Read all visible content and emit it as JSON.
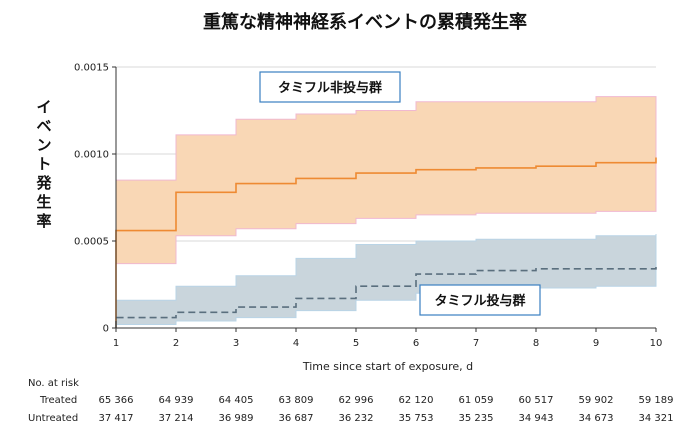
{
  "chart_data": {
    "type": "line",
    "title": "重篤な精神神経系イベントの累積発生率",
    "xlabel": "Time since start of exposure, d",
    "ylabel": "イベント発生率",
    "xlim": [
      1,
      10
    ],
    "ylim": [
      0,
      0.0015
    ],
    "x_ticks": [
      "1",
      "2",
      "3",
      "4",
      "5",
      "6",
      "7",
      "8",
      "9",
      "10"
    ],
    "y_ticks": [
      "0",
      "0.0005",
      "0.0010",
      "0.0015"
    ],
    "grid": "horizontal",
    "series": [
      {
        "name": "タミフル非投与群",
        "line_color": "#ee8a33",
        "band_color": "#f9d7b5",
        "style": "solid",
        "step_x": [
          1,
          2,
          3,
          4,
          5,
          6,
          7,
          8,
          9,
          10
        ],
        "values": [
          0.00056,
          0.00078,
          0.00083,
          0.00086,
          0.00089,
          0.00091,
          0.00092,
          0.00093,
          0.00095,
          0.00098
        ],
        "lower": [
          0.00037,
          0.00053,
          0.00057,
          0.0006,
          0.00063,
          0.00065,
          0.00066,
          0.00066,
          0.00067,
          0.00069
        ],
        "upper": [
          0.00085,
          0.00111,
          0.0012,
          0.00123,
          0.00125,
          0.0013,
          0.0013,
          0.0013,
          0.00133,
          0.00133
        ]
      },
      {
        "name": "タミフル投与群",
        "line_color": "#5a6f7e",
        "band_color": "#c9d5dc",
        "style": "dashed",
        "step_x": [
          1,
          2,
          3,
          4,
          5,
          6,
          7,
          8,
          9,
          10
        ],
        "values": [
          6e-05,
          9e-05,
          0.00012,
          0.00017,
          0.00024,
          0.00031,
          0.00033,
          0.00034,
          0.00034,
          0.00036
        ],
        "lower": [
          2e-05,
          4e-05,
          6e-05,
          0.0001,
          0.00016,
          0.0002,
          0.00023,
          0.00023,
          0.00024,
          0.00024
        ],
        "upper": [
          0.00016,
          0.00024,
          0.0003,
          0.0004,
          0.00048,
          0.0005,
          0.00051,
          0.00051,
          0.00053,
          0.00054
        ]
      }
    ],
    "annotations": [
      "タミフル非投与群",
      "タミフル投与群"
    ]
  },
  "risk_table": {
    "title": "No. at risk",
    "rows": [
      {
        "label": "Treated",
        "values": [
          "65 366",
          "64 939",
          "64 405",
          "63 809",
          "62 996",
          "62 120",
          "61 059",
          "60 517",
          "59 902",
          "59 189"
        ]
      },
      {
        "label": "Untreated",
        "values": [
          "37 417",
          "37 214",
          "36 989",
          "36 687",
          "36 232",
          "35 753",
          "35 235",
          "34 943",
          "34 673",
          "34 321"
        ]
      }
    ]
  }
}
